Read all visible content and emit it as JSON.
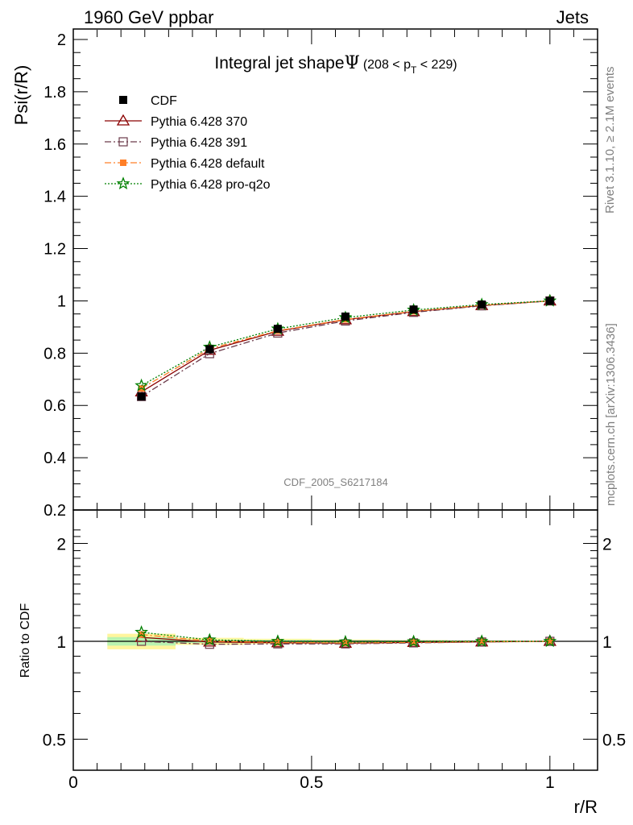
{
  "header": {
    "left": "1960 GeV ppbar",
    "right": "Jets"
  },
  "side_text": {
    "rivet": "Rivet 3.1.10, ≥ 2.1M events",
    "mcplots": "mcplots.cern.ch [arXiv:1306.3436]"
  },
  "watermark": "CDF_2005_S6217184",
  "chart_data": [
    {
      "type": "line",
      "title_main": "Integral jet shape",
      "title_symbol": "Ψ",
      "title_range_pre": "(208 < p",
      "title_range_sub": "T",
      "title_range_post": " < 229)",
      "xlabel": "r/R",
      "ylabel": "Psi(r/R)",
      "xlim": [
        0,
        1.1
      ],
      "ylim": [
        0.2,
        2.05
      ],
      "y_ticks": [
        "0.2",
        "0.4",
        "0.6",
        "0.8",
        "1",
        "1.2",
        "1.4",
        "1.6",
        "1.8",
        "2"
      ],
      "x": [
        0.143,
        0.286,
        0.429,
        0.571,
        0.714,
        0.857,
        1.0
      ],
      "series": [
        {
          "name": "CDF",
          "marker": "filled-square",
          "color": "#000000",
          "values": [
            0.634,
            0.815,
            0.893,
            0.94,
            0.967,
            0.986,
            1.0
          ]
        },
        {
          "name": "Pythia 6.428 370",
          "marker": "open-triangle",
          "line": "solid",
          "color": "#8b0000",
          "values": [
            0.652,
            0.811,
            0.884,
            0.928,
            0.959,
            0.982,
            1.0
          ]
        },
        {
          "name": "Pythia 6.428 391",
          "marker": "open-square",
          "line": "dashdot",
          "color": "#6b3a4a",
          "values": [
            0.634,
            0.798,
            0.877,
            0.923,
            0.956,
            0.981,
            1.0
          ]
        },
        {
          "name": "Pythia 6.428 default",
          "marker": "filled-square-small",
          "line": "dashdot",
          "color": "#ff7f27",
          "values": [
            0.665,
            0.817,
            0.886,
            0.929,
            0.96,
            0.983,
            1.0
          ]
        },
        {
          "name": "Pythia 6.428 pro-q2o",
          "marker": "open-star",
          "line": "dotted",
          "color": "#008000",
          "values": [
            0.676,
            0.823,
            0.893,
            0.936,
            0.965,
            0.986,
            1.0
          ]
        }
      ]
    },
    {
      "type": "line",
      "ylabel": "Ratio to CDF",
      "xlabel": "r/R",
      "xlim": [
        0,
        1.1
      ],
      "ylim": [
        0.4,
        2.3
      ],
      "x_ticks": [
        "0",
        "0.5",
        "1"
      ],
      "y_ticks": [
        "0.5",
        "1",
        "2"
      ],
      "band_edges": [
        0.0715,
        0.2145,
        0.3575,
        0.5,
        0.643,
        0.786,
        0.929,
        1.071
      ],
      "band_inner": [
        0.03,
        0.012,
        0.01,
        0.008,
        0.006,
        0.004,
        0.002
      ],
      "band_outer": [
        0.055,
        0.025,
        0.018,
        0.013,
        0.009,
        0.006,
        0.003
      ],
      "x": [
        0.143,
        0.286,
        0.429,
        0.571,
        0.714,
        0.857,
        1.0
      ],
      "series": [
        {
          "name": "Pythia 6.428 370",
          "color": "#8b0000",
          "values": [
            1.028,
            0.995,
            0.99,
            0.987,
            0.992,
            0.996,
            1.0
          ]
        },
        {
          "name": "Pythia 6.428 391",
          "color": "#6b3a4a",
          "values": [
            1.0,
            0.979,
            0.982,
            0.982,
            0.989,
            0.995,
            1.0
          ]
        },
        {
          "name": "Pythia 6.428 default",
          "color": "#ff7f27",
          "values": [
            1.049,
            1.002,
            0.992,
            0.988,
            0.993,
            0.997,
            1.0
          ]
        },
        {
          "name": "Pythia 6.428 pro-q2o",
          "color": "#008000",
          "values": [
            1.066,
            1.01,
            1.0,
            0.996,
            0.998,
            1.0,
            1.0
          ]
        }
      ]
    }
  ]
}
